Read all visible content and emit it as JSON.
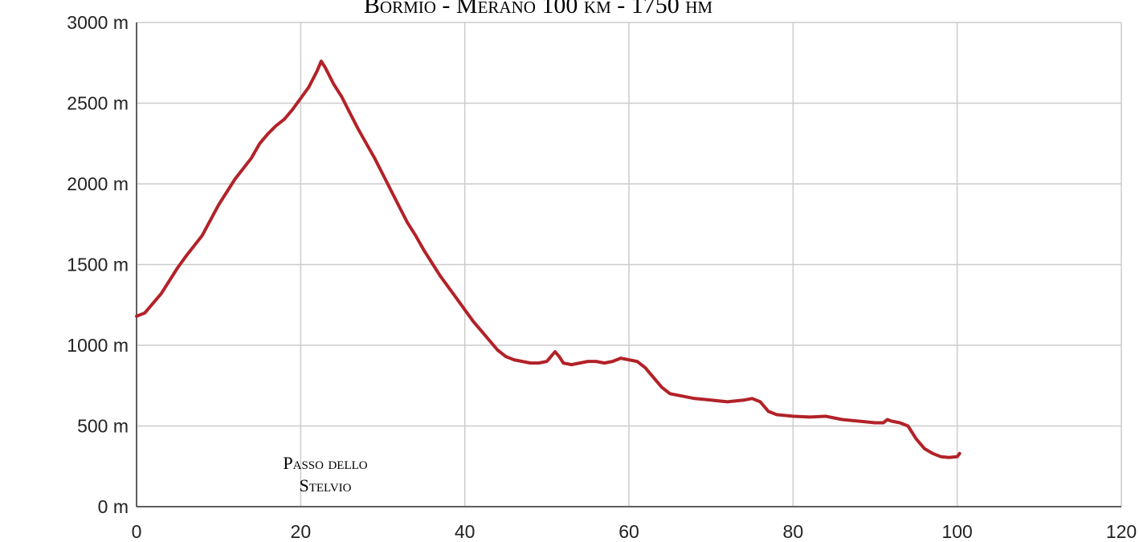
{
  "chart_data": {
    "type": "line",
    "title": "Bormio - Merano   100 km - 1750 hm",
    "annotation": {
      "line1": "Passo dello",
      "line2": "Stelvio"
    },
    "xlim": [
      0,
      120
    ],
    "ylim": [
      0,
      3000
    ],
    "xticks": [
      0,
      20,
      40,
      60,
      80,
      100,
      120
    ],
    "yticks": [
      0,
      500,
      1000,
      1500,
      2000,
      2500,
      3000
    ],
    "ytick_suffix": " m",
    "grid": true,
    "colors": {
      "line": "#b22228",
      "grid": "#cccccc",
      "axis": "#333333"
    },
    "series": [
      {
        "x": [
          0,
          1,
          3,
          5,
          6,
          8,
          10,
          12,
          14,
          15,
          16,
          17,
          18,
          19,
          20,
          21,
          22,
          22.5,
          23,
          24,
          25,
          26,
          27,
          28,
          29,
          30,
          31,
          32,
          33,
          34,
          35,
          36,
          37,
          38,
          39,
          40,
          41,
          42,
          43,
          44,
          45,
          46,
          47,
          48,
          49,
          50,
          51,
          51.5,
          52,
          53,
          54,
          55,
          56,
          57,
          58,
          59,
          60,
          61,
          62,
          63,
          64,
          65,
          66,
          68,
          70,
          72,
          74,
          75,
          76,
          77,
          78,
          80,
          82,
          84,
          85,
          86,
          88,
          90,
          91,
          91.5,
          92,
          93,
          94,
          95,
          96,
          97,
          98,
          99,
          100,
          100.3
        ],
        "y": [
          1180,
          1200,
          1320,
          1480,
          1550,
          1680,
          1870,
          2030,
          2160,
          2250,
          2310,
          2360,
          2400,
          2460,
          2530,
          2600,
          2700,
          2760,
          2720,
          2620,
          2540,
          2440,
          2340,
          2250,
          2160,
          2060,
          1960,
          1860,
          1760,
          1680,
          1590,
          1510,
          1430,
          1360,
          1290,
          1220,
          1150,
          1090,
          1030,
          970,
          930,
          910,
          900,
          890,
          890,
          900,
          960,
          930,
          890,
          880,
          890,
          900,
          900,
          890,
          900,
          920,
          910,
          900,
          860,
          800,
          740,
          700,
          690,
          670,
          660,
          650,
          660,
          670,
          650,
          590,
          570,
          560,
          555,
          560,
          550,
          540,
          530,
          520,
          520,
          540,
          530,
          520,
          500,
          420,
          360,
          330,
          310,
          305,
          310,
          330
        ]
      }
    ]
  }
}
